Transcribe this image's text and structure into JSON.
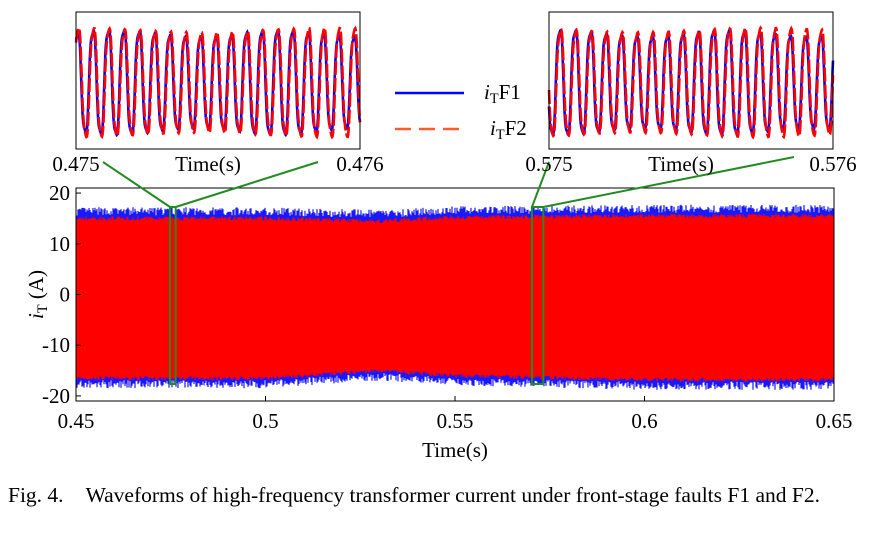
{
  "chart_data": {
    "type": "line",
    "main": {
      "xlabel": "Time(s)",
      "ylabel": "i_T (A)",
      "ylabel_main": "i",
      "ylabel_sub": "T",
      "ylabel_unit": " (A)",
      "xlim": [
        0.45,
        0.65
      ],
      "ylim": [
        -21,
        21
      ],
      "xticks": [
        0.45,
        0.5,
        0.55,
        0.6,
        0.65
      ],
      "xtick_labels": [
        "0.45",
        "0.5",
        "0.55",
        "0.6",
        "0.65"
      ],
      "yticks": [
        20,
        10,
        0,
        -10,
        -20
      ],
      "ytick_labels": [
        "20",
        "10",
        "0",
        "-10",
        "-20"
      ],
      "envelope": {
        "x": [
          0.45,
          0.5,
          0.53,
          0.55,
          0.6,
          0.65
        ],
        "upper": [
          15.0,
          15.0,
          14.5,
          15.2,
          15.5,
          15.5
        ],
        "lower": [
          -16.5,
          -16.5,
          -15.0,
          -16.0,
          -16.8,
          -16.8
        ]
      },
      "zoom_boxes": [
        [
          0.4748,
          0.4763
        ],
        [
          0.5703,
          0.5733
        ]
      ]
    },
    "insets": [
      {
        "xlim": [
          0.475,
          0.476
        ],
        "xtick_labels": [
          "0.475",
          "0.476"
        ],
        "xlabel": "Time(s)",
        "cycles": 18.5
      },
      {
        "xlim": [
          0.575,
          0.576
        ],
        "xtick_labels": [
          "0.575",
          "0.576"
        ],
        "xlabel": "Time(s)",
        "cycles": 18.5
      }
    ],
    "series": [
      {
        "name": "i_T F1",
        "label_main": "i",
        "label_sub": "T",
        "label_tail": "F1",
        "color": "#0000ff",
        "style": "solid"
      },
      {
        "name": "i_T F2",
        "label_main": "i",
        "label_sub": "T",
        "label_tail": "F2",
        "color": "#ff0000",
        "style": "dashed"
      }
    ]
  },
  "caption": {
    "label": "Fig. 4.",
    "text": "Waveforms of high-frequency transformer current under front-stage faults F1 and F2."
  },
  "colors": {
    "zoom_box": "#228b22",
    "f1": "#0000ff",
    "f2": "#ff0000"
  }
}
